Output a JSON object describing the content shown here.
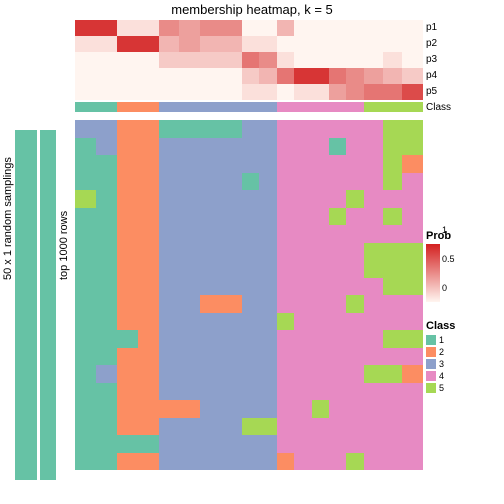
{
  "title": "membership heatmap, k = 5",
  "y_label_outer": "50 x 1 random samplings",
  "y_label_inner": "top 1000 rows",
  "side_bar_color": "#66c2a5",
  "background_color": "#ffffff",
  "prob_row_labels": [
    "p1",
    "p2",
    "p3",
    "p4",
    "p5"
  ],
  "class_label": "Class",
  "n_cols": 18,
  "col_widths_pct": [
    6,
    6,
    6,
    6,
    6,
    6,
    6,
    6,
    5,
    5,
    5,
    5,
    5,
    5,
    5,
    5.5,
    5.5,
    6
  ],
  "prob_palette_low": "#fff5f0",
  "prob_palette_high": "#d32020",
  "prob_rows": [
    [
      0.9,
      0.9,
      0.1,
      0.1,
      0.5,
      0.4,
      0.5,
      0.5,
      0.0,
      0.0,
      0.3,
      0.0,
      0.0,
      0.0,
      0.0,
      0.0,
      0.0,
      0.0
    ],
    [
      0.1,
      0.1,
      0.9,
      0.9,
      0.3,
      0.4,
      0.3,
      0.3,
      0.1,
      0.1,
      0.0,
      0.0,
      0.0,
      0.0,
      0.0,
      0.0,
      0.0,
      0.0
    ],
    [
      0.0,
      0.0,
      0.0,
      0.0,
      0.2,
      0.2,
      0.2,
      0.2,
      0.6,
      0.5,
      0.1,
      0.0,
      0.0,
      0.0,
      0.0,
      0.0,
      0.1,
      0.0
    ],
    [
      0.0,
      0.0,
      0.0,
      0.0,
      0.0,
      0.0,
      0.0,
      0.0,
      0.2,
      0.3,
      0.6,
      0.9,
      0.9,
      0.6,
      0.5,
      0.4,
      0.3,
      0.2
    ],
    [
      0.0,
      0.0,
      0.0,
      0.0,
      0.0,
      0.0,
      0.0,
      0.0,
      0.1,
      0.1,
      0.0,
      0.1,
      0.1,
      0.4,
      0.5,
      0.6,
      0.6,
      0.8
    ]
  ],
  "class_colors": {
    "1": "#66c2a5",
    "2": "#fc8d62",
    "3": "#8da0cb",
    "4": "#e78ac3",
    "5": "#a6d854"
  },
  "class_sequence": [
    1,
    1,
    2,
    2,
    3,
    3,
    3,
    3,
    3,
    3,
    4,
    4,
    4,
    4,
    4,
    5,
    5,
    5
  ],
  "main_rows": [
    [
      3,
      3,
      2,
      2,
      1,
      1,
      1,
      1,
      3,
      3,
      4,
      4,
      4,
      4,
      4,
      4,
      5,
      5
    ],
    [
      1,
      3,
      2,
      2,
      3,
      3,
      3,
      3,
      3,
      3,
      4,
      4,
      4,
      1,
      4,
      4,
      5,
      5
    ],
    [
      1,
      1,
      2,
      2,
      3,
      3,
      3,
      3,
      3,
      3,
      4,
      4,
      4,
      4,
      4,
      4,
      5,
      2
    ],
    [
      1,
      1,
      2,
      2,
      3,
      3,
      3,
      3,
      1,
      3,
      4,
      4,
      4,
      4,
      4,
      4,
      5,
      4
    ],
    [
      5,
      1,
      2,
      2,
      3,
      3,
      3,
      3,
      3,
      3,
      4,
      4,
      4,
      4,
      5,
      4,
      4,
      4
    ],
    [
      1,
      1,
      2,
      2,
      3,
      3,
      3,
      3,
      3,
      3,
      4,
      4,
      4,
      5,
      4,
      4,
      5,
      4
    ],
    [
      1,
      1,
      2,
      2,
      3,
      3,
      3,
      3,
      3,
      3,
      4,
      4,
      4,
      4,
      4,
      4,
      4,
      4
    ],
    [
      1,
      1,
      2,
      2,
      3,
      3,
      3,
      3,
      3,
      3,
      4,
      4,
      4,
      4,
      4,
      5,
      5,
      5
    ],
    [
      1,
      1,
      2,
      2,
      3,
      3,
      3,
      3,
      3,
      3,
      4,
      4,
      4,
      4,
      4,
      5,
      5,
      5
    ],
    [
      1,
      1,
      2,
      2,
      3,
      3,
      3,
      3,
      3,
      3,
      4,
      4,
      4,
      4,
      4,
      4,
      5,
      5
    ],
    [
      1,
      1,
      2,
      2,
      3,
      3,
      2,
      2,
      3,
      3,
      4,
      4,
      4,
      4,
      5,
      4,
      4,
      4
    ],
    [
      1,
      1,
      2,
      2,
      3,
      3,
      3,
      3,
      3,
      3,
      5,
      4,
      4,
      4,
      4,
      4,
      4,
      4
    ],
    [
      1,
      1,
      1,
      2,
      3,
      3,
      3,
      3,
      3,
      3,
      4,
      4,
      4,
      4,
      4,
      4,
      5,
      5
    ],
    [
      1,
      1,
      2,
      2,
      3,
      3,
      3,
      3,
      3,
      3,
      4,
      4,
      4,
      4,
      4,
      4,
      4,
      4
    ],
    [
      1,
      3,
      2,
      2,
      3,
      3,
      3,
      3,
      3,
      3,
      4,
      4,
      4,
      4,
      4,
      5,
      5,
      2
    ],
    [
      1,
      1,
      2,
      2,
      3,
      3,
      3,
      3,
      3,
      3,
      4,
      4,
      4,
      4,
      4,
      4,
      4,
      4
    ],
    [
      1,
      1,
      2,
      2,
      2,
      2,
      3,
      3,
      3,
      3,
      4,
      4,
      5,
      4,
      4,
      4,
      4,
      4
    ],
    [
      1,
      1,
      2,
      2,
      3,
      3,
      3,
      3,
      5,
      5,
      4,
      4,
      4,
      4,
      4,
      4,
      4,
      4
    ],
    [
      1,
      1,
      1,
      1,
      3,
      3,
      3,
      3,
      3,
      3,
      4,
      4,
      4,
      4,
      4,
      4,
      4,
      4
    ],
    [
      1,
      1,
      2,
      2,
      3,
      3,
      3,
      3,
      3,
      3,
      2,
      4,
      4,
      4,
      5,
      4,
      4,
      4
    ]
  ],
  "prob_legend": {
    "title": "Prob",
    "ticks": [
      {
        "value": 1,
        "label": "1",
        "pos_pct": 0
      },
      {
        "value": 0.5,
        "label": "0.5",
        "pos_pct": 50
      },
      {
        "value": 0,
        "label": "0",
        "pos_pct": 100
      }
    ]
  },
  "class_legend": {
    "title": "Class",
    "items": [
      {
        "label": "1",
        "color": "#66c2a5"
      },
      {
        "label": "2",
        "color": "#fc8d62"
      },
      {
        "label": "3",
        "color": "#8da0cb"
      },
      {
        "label": "4",
        "color": "#e78ac3"
      },
      {
        "label": "5",
        "color": "#a6d854"
      }
    ]
  }
}
